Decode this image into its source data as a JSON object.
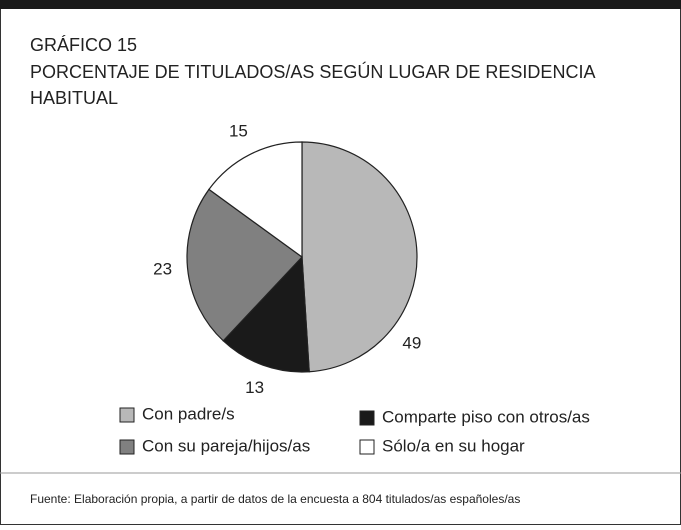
{
  "chart_data": {
    "type": "pie",
    "title": "GRÁFICO 15",
    "subtitle": [
      "PORCENTAJE DE TITULADOS/AS SEGÚN LUGAR DE RESIDENCIA",
      "HABITUAL"
    ],
    "categories": [
      "Con padre/s",
      "Comparte piso con otros/as",
      "Con su pareja/hijos/as",
      "Sólo/a en su hogar"
    ],
    "values": [
      49,
      13,
      23,
      15
    ],
    "colors": [
      "#b8b8b8",
      "#1a1a1a",
      "#808080",
      "#ffffff"
    ],
    "source": "Fuente: Elaboración propia, a partir de datos de la encuesta a 804 titulados/as españoles/as"
  }
}
